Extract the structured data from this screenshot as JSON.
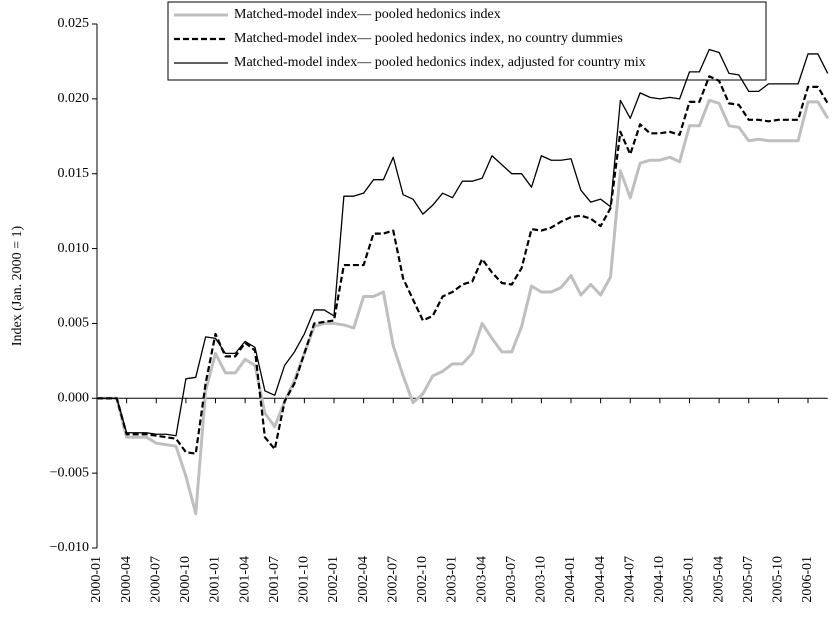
{
  "chart_data": {
    "type": "line",
    "y_label": "Index (Jan. 2000 = 1)",
    "categories": [
      "2000-01",
      null,
      null,
      "2000-04",
      null,
      null,
      "2000-07",
      null,
      null,
      "2000-10",
      null,
      null,
      "2001-01",
      null,
      null,
      "2001-04",
      null,
      null,
      "2001-07",
      null,
      null,
      "2001-10",
      null,
      null,
      "2002-01",
      null,
      null,
      "2002-04",
      null,
      null,
      "2002-07",
      null,
      null,
      "2002-10",
      null,
      null,
      "2003-01",
      null,
      null,
      "2003-04",
      null,
      null,
      "2003-07",
      null,
      null,
      "2003-10",
      null,
      null,
      "2004-01",
      null,
      null,
      "2004-04",
      null,
      null,
      "2004-07",
      null,
      null,
      "2004-10",
      null,
      null,
      "2005-01",
      null,
      null,
      "2005-04",
      null,
      null,
      "2005-07",
      null,
      null,
      "2005-10",
      null,
      null,
      "2006-01",
      null,
      null
    ],
    "ylim": [
      -0.01,
      0.025
    ],
    "yticks": [
      {
        "value": -0.01,
        "label": "−0.010"
      },
      {
        "value": -0.005,
        "label": "−0.005"
      },
      {
        "value": 0,
        "label": "0.000"
      },
      {
        "value": 0.005,
        "label": "0.005"
      },
      {
        "value": 0.01,
        "label": "0.010"
      },
      {
        "value": 0.015,
        "label": "0.015"
      },
      {
        "value": 0.02,
        "label": "0.020"
      },
      {
        "value": 0.025,
        "label": "0.025"
      }
    ],
    "series": [
      {
        "name": "Matched-model index— pooled hedonics index",
        "color": "#bfbfbf",
        "line_style": "solid",
        "line_width": 3,
        "values": [
          0,
          0,
          0,
          -0.0026,
          -0.0026,
          -0.0026,
          -0.003,
          -0.0031,
          -0.0032,
          -0.0052,
          -0.0077,
          0.0005,
          0.003,
          0.0017,
          0.0017,
          0.0026,
          0.0022,
          -0.001,
          -0.0019,
          -0.0002,
          0.0012,
          0.003,
          0.0048,
          0.005,
          0.005,
          0.0049,
          0.0047,
          0.0068,
          0.0068,
          0.0071,
          0.0035,
          0.0015,
          -0.0003,
          0.0003,
          0.0015,
          0.0018,
          0.0023,
          0.0023,
          0.003,
          0.005,
          0.004,
          0.0031,
          0.0031,
          0.0048,
          0.0075,
          0.0071,
          0.0071,
          0.0074,
          0.0082,
          0.0069,
          0.0076,
          0.0069,
          0.0081,
          0.0152,
          0.0134,
          0.0157,
          0.0159,
          0.0159,
          0.0161,
          0.0158,
          0.0182,
          0.0182,
          0.0199,
          0.0197,
          0.0182,
          0.0181,
          0.0172,
          0.0173,
          0.0172,
          0.0172,
          0.0172,
          0.0172,
          0.0198,
          0.0198,
          0.0187
        ]
      },
      {
        "name": "Matched-model index— pooled hedonics index, no country dummies",
        "color": "#000000",
        "line_style": "dashed",
        "line_width": 2.2,
        "values": [
          0,
          0,
          0,
          -0.0024,
          -0.0024,
          -0.0024,
          -0.0025,
          -0.0026,
          -0.0027,
          -0.0036,
          -0.0037,
          0.001,
          0.0043,
          0.0028,
          0.0028,
          0.0037,
          0.0032,
          -0.0026,
          -0.0034,
          -0.0002,
          0.001,
          0.003,
          0.005,
          0.0051,
          0.0052,
          0.0089,
          0.0089,
          0.0089,
          0.011,
          0.011,
          0.0112,
          0.008,
          0.0066,
          0.0052,
          0.0055,
          0.0068,
          0.0071,
          0.0076,
          0.0078,
          0.0093,
          0.0084,
          0.0077,
          0.0076,
          0.0087,
          0.0113,
          0.0112,
          0.0114,
          0.0118,
          0.0121,
          0.0122,
          0.012,
          0.0115,
          0.0127,
          0.0178,
          0.0163,
          0.0183,
          0.0177,
          0.0177,
          0.0178,
          0.0176,
          0.0198,
          0.0198,
          0.0215,
          0.0212,
          0.0197,
          0.0196,
          0.0186,
          0.0186,
          0.0185,
          0.0186,
          0.0186,
          0.0186,
          0.0208,
          0.0208,
          0.0197
        ]
      },
      {
        "name": "Matched-model index— pooled hedonics index, adjusted for country mix",
        "color": "#000000",
        "line_style": "solid",
        "line_width": 1.3,
        "values": [
          0,
          0,
          0,
          -0.0023,
          -0.0023,
          -0.0023,
          -0.0024,
          -0.0024,
          -0.0025,
          0.0013,
          0.0014,
          0.0041,
          0.004,
          0.003,
          0.003,
          0.0038,
          0.0034,
          0.0005,
          0.0002,
          0.0022,
          0.0031,
          0.0043,
          0.0059,
          0.0059,
          0.0055,
          0.0135,
          0.0135,
          0.0137,
          0.0146,
          0.0146,
          0.0161,
          0.0136,
          0.0133,
          0.0123,
          0.0129,
          0.0137,
          0.0134,
          0.0145,
          0.0145,
          0.0147,
          0.0162,
          0.0156,
          0.015,
          0.015,
          0.0141,
          0.0162,
          0.0159,
          0.0159,
          0.016,
          0.0139,
          0.0131,
          0.0133,
          0.0128,
          0.0199,
          0.0187,
          0.0204,
          0.0201,
          0.02,
          0.0201,
          0.02,
          0.0218,
          0.0218,
          0.0233,
          0.0231,
          0.0217,
          0.0216,
          0.0205,
          0.0205,
          0.021,
          0.021,
          0.021,
          0.021,
          0.023,
          0.023,
          0.0217
        ]
      }
    ]
  }
}
